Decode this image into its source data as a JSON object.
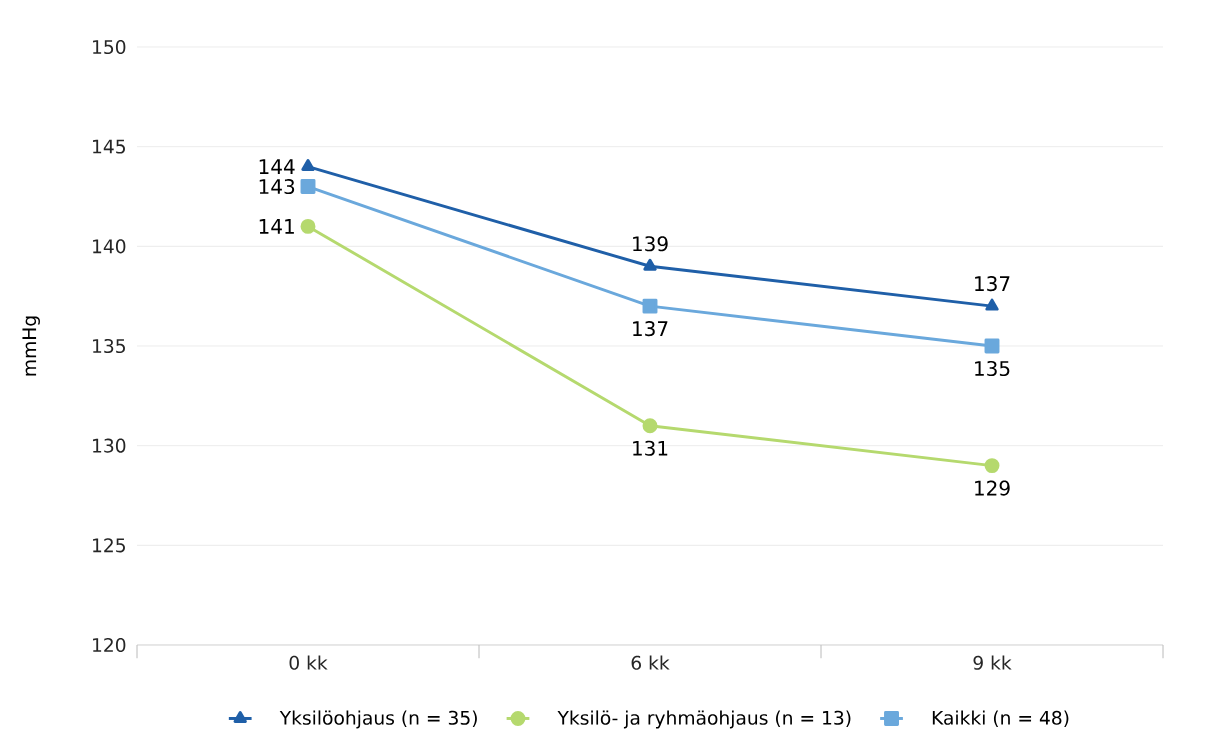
{
  "chart_data": {
    "type": "line",
    "ylabel": "mmHg",
    "categories": [
      "0 kk",
      "6 kk",
      "9 kk"
    ],
    "series": [
      {
        "name": "Yksilöohjaus (n = 35)",
        "color": "#1f5fa8",
        "marker": "triangle",
        "values": [
          144,
          139,
          137
        ]
      },
      {
        "name": "Yksilö- ja ryhmäohjaus (n = 13)",
        "color": "#b5d96e",
        "marker": "circle",
        "values": [
          141,
          131,
          129
        ]
      },
      {
        "name": "Kaikki (n = 48)",
        "color": "#6aa8dc",
        "marker": "square",
        "values": [
          143,
          137,
          135
        ]
      }
    ],
    "ylim": [
      120,
      150
    ],
    "yticks": [
      120,
      125,
      130,
      135,
      140,
      145,
      150
    ],
    "grid": "y",
    "legend": "bottom",
    "data_labels": true,
    "line_style": "solid"
  }
}
